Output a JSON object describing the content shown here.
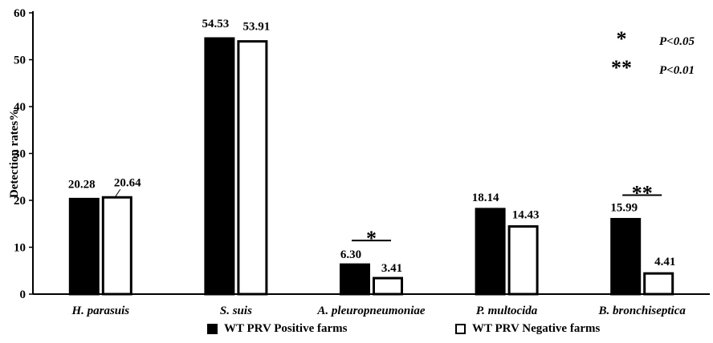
{
  "chart_data": {
    "type": "bar",
    "ylabel": "Detection rates%",
    "ylim": [
      0,
      60
    ],
    "yticks": [
      0,
      10,
      20,
      30,
      40,
      50,
      60
    ],
    "categories": [
      "H. parasuis",
      "S. suis",
      "A. pleuropneumoniae",
      "P. multocida",
      "B. bronchiseptica"
    ],
    "series": [
      {
        "name": "WT PRV Positive farms",
        "color": "#000000",
        "values": [
          20.28,
          54.53,
          6.3,
          18.14,
          15.99
        ]
      },
      {
        "name": "WT PRV Negative farms",
        "color": "#ffffff",
        "values": [
          20.64,
          53.91,
          3.41,
          14.43,
          4.41
        ]
      }
    ],
    "value_labels": [
      [
        "20.28",
        "54.53",
        "6.30",
        "18.14",
        "15.99"
      ],
      [
        "20.64",
        "53.91",
        "3.41",
        "14.43",
        "4.41"
      ]
    ],
    "significance_markers": [
      {
        "category": "A. pleuropneumoniae",
        "symbol": "*"
      },
      {
        "category": "B. bronchiseptica",
        "symbol": "**"
      }
    ],
    "significance_key": [
      {
        "symbol": "*",
        "label": "P<0.05"
      },
      {
        "symbol": "**",
        "label": "P<0.01"
      }
    ],
    "legend_position": "bottom",
    "grid": false
  }
}
